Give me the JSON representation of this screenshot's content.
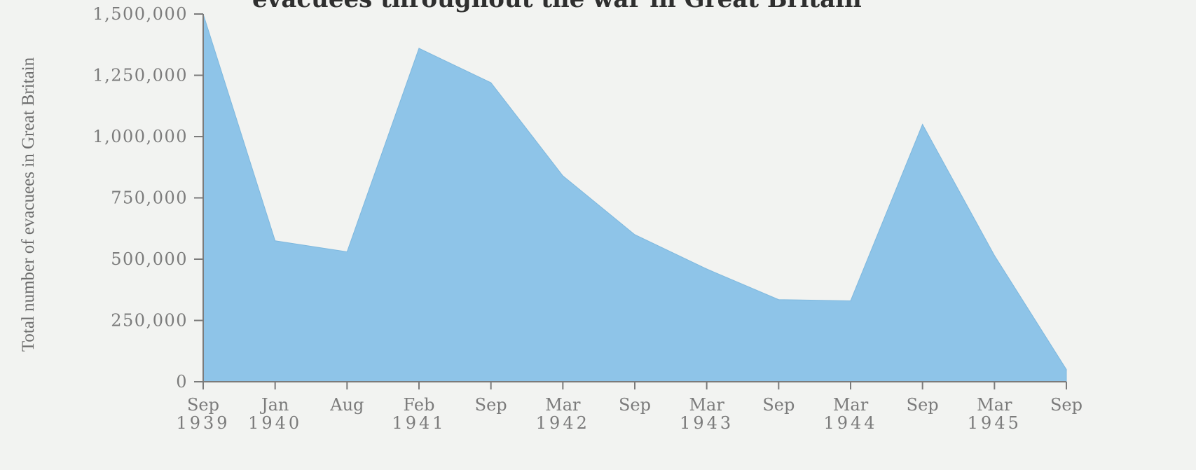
{
  "chart_data": {
    "type": "area",
    "ylabel": "Total number of evacuees in Great Britain",
    "xlabel": "",
    "ylim": [
      0,
      1500000
    ],
    "yticks": [
      0,
      250000,
      500000,
      750000,
      1000000,
      1250000,
      1500000
    ],
    "ytick_labels": [
      "0",
      "250,000",
      "500,000",
      "750,000",
      "1,000,000",
      "1,250,000",
      "1,500,000"
    ],
    "xticks": [
      {
        "month": "Sep",
        "year": "1939"
      },
      {
        "month": "Jan",
        "year": "1940"
      },
      {
        "month": "Aug",
        "year": ""
      },
      {
        "month": "Feb",
        "year": "1941"
      },
      {
        "month": "Sep",
        "year": ""
      },
      {
        "month": "Mar",
        "year": "1942"
      },
      {
        "month": "Sep",
        "year": ""
      },
      {
        "month": "Mar",
        "year": "1943"
      },
      {
        "month": "Sep",
        "year": ""
      },
      {
        "month": "Mar",
        "year": "1944"
      },
      {
        "month": "Sep",
        "year": ""
      },
      {
        "month": "Mar",
        "year": "1945"
      },
      {
        "month": "Sep",
        "year": ""
      }
    ],
    "categories": [
      "Sep 1939",
      "Jan 1940",
      "Aug 1940",
      "Feb 1941",
      "Sep 1941",
      "Mar 1942",
      "Sep 1942",
      "Mar 1943",
      "Sep 1943",
      "Mar 1944",
      "Sep 1944",
      "Mar 1945",
      "Sep 1945"
    ],
    "series": [
      {
        "values": [
          1500000,
          575000,
          530000,
          1360000,
          1220000,
          840000,
          600000,
          460000,
          335000,
          330000,
          1050000,
          515000,
          50000
        ]
      }
    ],
    "fill_color": "#8ec4e8",
    "axis_color": "#7b7b7b",
    "grid": false
  }
}
